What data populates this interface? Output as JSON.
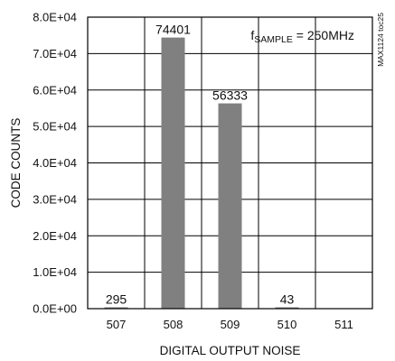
{
  "chart_data": {
    "type": "bar",
    "categories": [
      "507",
      "508",
      "509",
      "510",
      "511"
    ],
    "values": [
      295,
      74401,
      56333,
      43,
      0
    ],
    "data_labels": [
      "295",
      "74401",
      "56333",
      "43",
      ""
    ],
    "title": "",
    "xlabel": "DIGITAL OUTPUT NOISE",
    "ylabel": "CODE COUNTS",
    "ylim": [
      0,
      80000
    ],
    "yticks": [
      0,
      10000,
      20000,
      30000,
      40000,
      50000,
      60000,
      70000,
      80000
    ],
    "ytick_labels": [
      "0.0E+00",
      "1.0E+04",
      "2.0E+04",
      "3.0E+04",
      "4.0E+04",
      "5.0E+04",
      "6.0E+04",
      "7.0E+04",
      "8.0E+04"
    ],
    "grid": true,
    "bar_color": "#808080",
    "annotation": {
      "f": "f",
      "sub": "SAMPLE",
      "rest": " = 250MHz"
    },
    "side_note": "MAX1124 toc25"
  }
}
